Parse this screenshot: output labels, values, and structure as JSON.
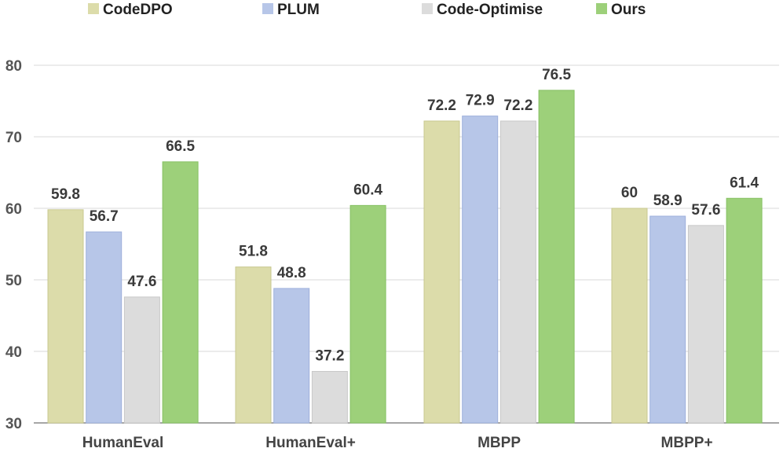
{
  "chart_data": {
    "type": "bar",
    "categories": [
      "HumanEval",
      "HumanEval+",
      "MBPP",
      "MBPP+"
    ],
    "series": [
      {
        "name": "CodeDPO",
        "color": "#dcdcaa",
        "stroke": "#c8c890",
        "values": [
          59.8,
          51.8,
          72.2,
          60
        ]
      },
      {
        "name": "PLUM",
        "color": "#b7c6e8",
        "stroke": "#9eb0dc",
        "values": [
          56.7,
          48.8,
          72.9,
          58.9
        ]
      },
      {
        "name": "Code-Optimise",
        "color": "#dcdcdc",
        "stroke": "#c8c8c8",
        "values": [
          47.6,
          37.2,
          72.2,
          57.6
        ]
      },
      {
        "name": "Ours",
        "color": "#9dd07a",
        "stroke": "#86c063",
        "values": [
          66.5,
          60.4,
          76.5,
          61.4
        ]
      }
    ],
    "value_labels": [
      [
        "59.8",
        "51.8",
        "72.2",
        "60"
      ],
      [
        "56.7",
        "48.8",
        "72.9",
        "58.9"
      ],
      [
        "47.6",
        "37.2",
        "72.2",
        "57.6"
      ],
      [
        "66.5",
        "60.4",
        "76.5",
        "61.4"
      ]
    ],
    "yticks": [
      "30",
      "40",
      "50",
      "60",
      "70",
      "80"
    ],
    "ylim": [
      30,
      80
    ],
    "grid": true,
    "legend_position": "top"
  }
}
